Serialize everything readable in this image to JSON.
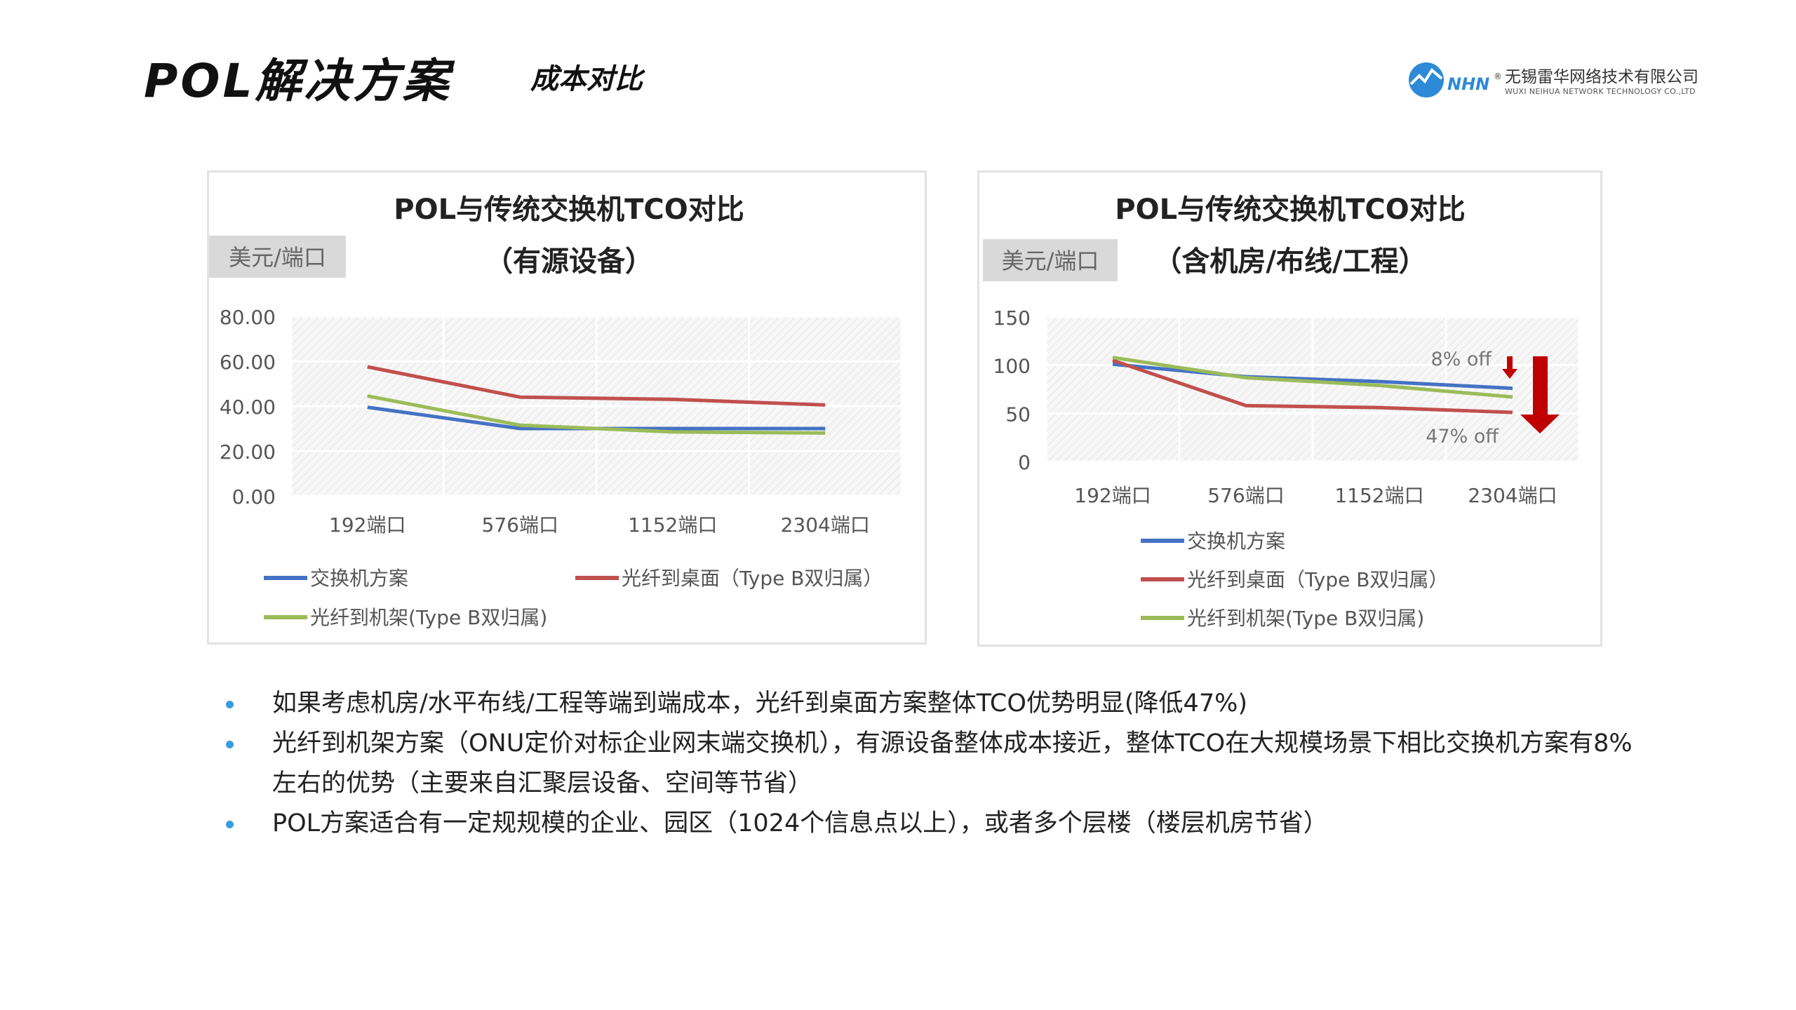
{
  "header": {
    "title": "POL解决方案",
    "subtitle": "成本对比"
  },
  "logo": {
    "brand": "NHN",
    "reg": "®",
    "company_cn": "无锡雷华网络技术有限公司",
    "company_en": "WUXI NEIHUA NETWORK TECHNOLOGY CO.,LTD"
  },
  "chart_data": [
    {
      "type": "line",
      "title": "POL与传统交换机TCO对比",
      "subtitle": "（有源设备）",
      "ylabel": "美元/端口",
      "xlabel": "",
      "categories": [
        "192端口",
        "576端口",
        "1152端口",
        "2304端口"
      ],
      "ylim": [
        0,
        80
      ],
      "yticks": [
        "80.00",
        "60.00",
        "40.00",
        "20.00",
        "0.00"
      ],
      "grid": true,
      "legend_placement": "bottom",
      "series": [
        {
          "name": "交换机方案",
          "color": "#4472c4",
          "values": [
            39.5,
            30,
            30,
            30
          ]
        },
        {
          "name": "光纤到桌面（Type B双归属）",
          "color": "#c0504d",
          "values": [
            57.5,
            44,
            43,
            40.5
          ]
        },
        {
          "name": "光纤到机架(Type B双归属)",
          "color": "#9bbb59",
          "values": [
            44.5,
            31.5,
            28.5,
            28
          ]
        }
      ],
      "annotations": []
    },
    {
      "type": "line",
      "title": "POL与传统交换机TCO对比",
      "subtitle": "（含机房/布线/工程）",
      "ylabel": "美元/端口",
      "xlabel": "",
      "categories": [
        "192端口",
        "576端口",
        "1152端口",
        "2304端口"
      ],
      "ylim": [
        0,
        150
      ],
      "yticks": [
        "150",
        "100",
        "50",
        "0"
      ],
      "grid": true,
      "legend_placement": "bottom",
      "series": [
        {
          "name": "交换机方案",
          "color": "#4472c4",
          "values": [
            101,
            88,
            83,
            76
          ]
        },
        {
          "name": "光纤到桌面（Type B双归属）",
          "color": "#c0504d",
          "values": [
            105,
            58,
            56,
            51
          ]
        },
        {
          "name": "光纤到机架(Type B双归属)",
          "color": "#9bbb59",
          "values": [
            108,
            87,
            79,
            67
          ]
        }
      ],
      "annotations": [
        "8% off",
        "47% off"
      ],
      "annotation_color": "#c00000"
    }
  ],
  "bullets": [
    "如果考虑机房/水平布线/工程等端到端成本，光纤到桌面方案整体TCO优势明显(降低47%)",
    "光纤到机架方案（ONU定价对标企业网末端交换机），有源设备整体成本接近，整体TCO在大规模场景下相比交换机方案有8%左右的优势（主要来自汇聚层设备、空间等节省）",
    "POL方案适合有一定规规模的企业、园区（1024个信息点以上），或者多个层楼（楼层机房节省）"
  ]
}
